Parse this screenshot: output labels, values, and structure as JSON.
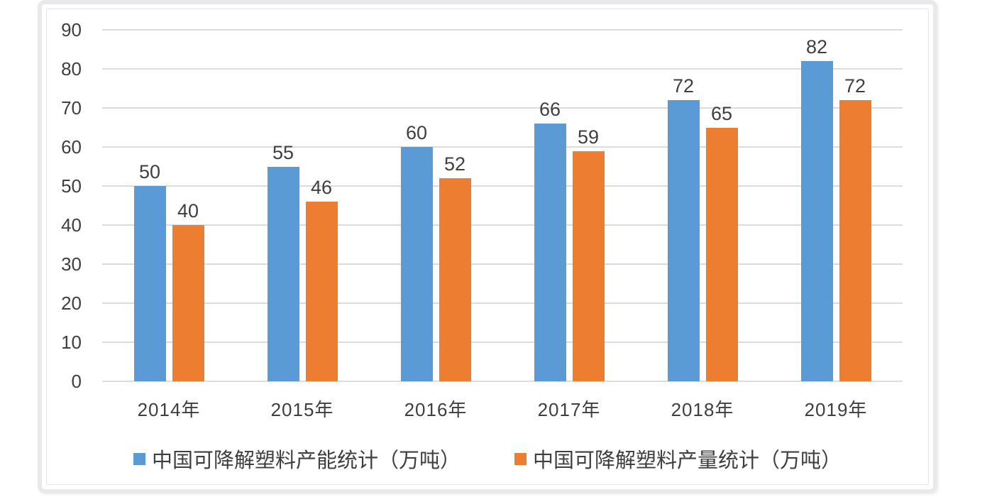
{
  "chart_data": {
    "type": "bar",
    "title": "",
    "xlabel": "",
    "ylabel": "",
    "categories": [
      "2014年",
      "2015年",
      "2016年",
      "2017年",
      "2018年",
      "2019年"
    ],
    "series": [
      {
        "key": "capacity",
        "name": "中国可降解塑料产能统计（万吨）",
        "color": "#5B9BD5",
        "values": [
          50,
          55,
          60,
          66,
          72,
          82
        ]
      },
      {
        "key": "output",
        "name": "中国可降解塑料产量统计（万吨）",
        "color": "#ED7D31",
        "values": [
          40,
          46,
          52,
          59,
          65,
          72
        ]
      }
    ],
    "ylim": [
      0,
      90
    ],
    "y_ticks": [
      0,
      10,
      20,
      30,
      40,
      50,
      60,
      70,
      80,
      90
    ],
    "grid": true,
    "data_labels": true,
    "legend_position": "bottom"
  },
  "colors": {
    "gridline": "#DBDBDB",
    "text": "#3F3F3F",
    "frame_border": "#E9E9EB",
    "chart_border": "#E4E4E6",
    "background": "#FFFFFF"
  }
}
